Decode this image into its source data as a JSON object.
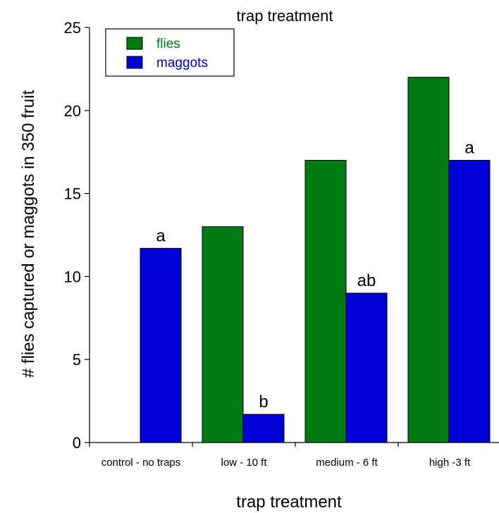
{
  "chart_data": {
    "type": "bar",
    "title": "trap treatment",
    "xlabel": "trap treatment",
    "ylabel": "# flies captured or maggots in 350 fruit",
    "categories": [
      "control - no traps",
      "low - 10 ft",
      "medium - 6 ft",
      "high -3 ft"
    ],
    "series": [
      {
        "name": "flies",
        "color": "#007a12",
        "values": [
          null,
          13,
          17,
          22
        ]
      },
      {
        "name": "maggots",
        "color": "#0000d6",
        "values": [
          11.7,
          1.7,
          9,
          17
        ]
      }
    ],
    "annotations": [
      {
        "category": 0,
        "series": 1,
        "text": "a"
      },
      {
        "category": 1,
        "series": 1,
        "text": "b"
      },
      {
        "category": 2,
        "series": 1,
        "text": "ab"
      },
      {
        "category": 3,
        "series": 1,
        "text": "a"
      }
    ],
    "ylim": [
      0,
      25
    ],
    "yticks": [
      0,
      5,
      10,
      15,
      20,
      25
    ],
    "grid": false,
    "legend_position": "top-left",
    "legend_text_colors": {
      "flies": "#007a12",
      "maggots": "#0000d6"
    }
  }
}
